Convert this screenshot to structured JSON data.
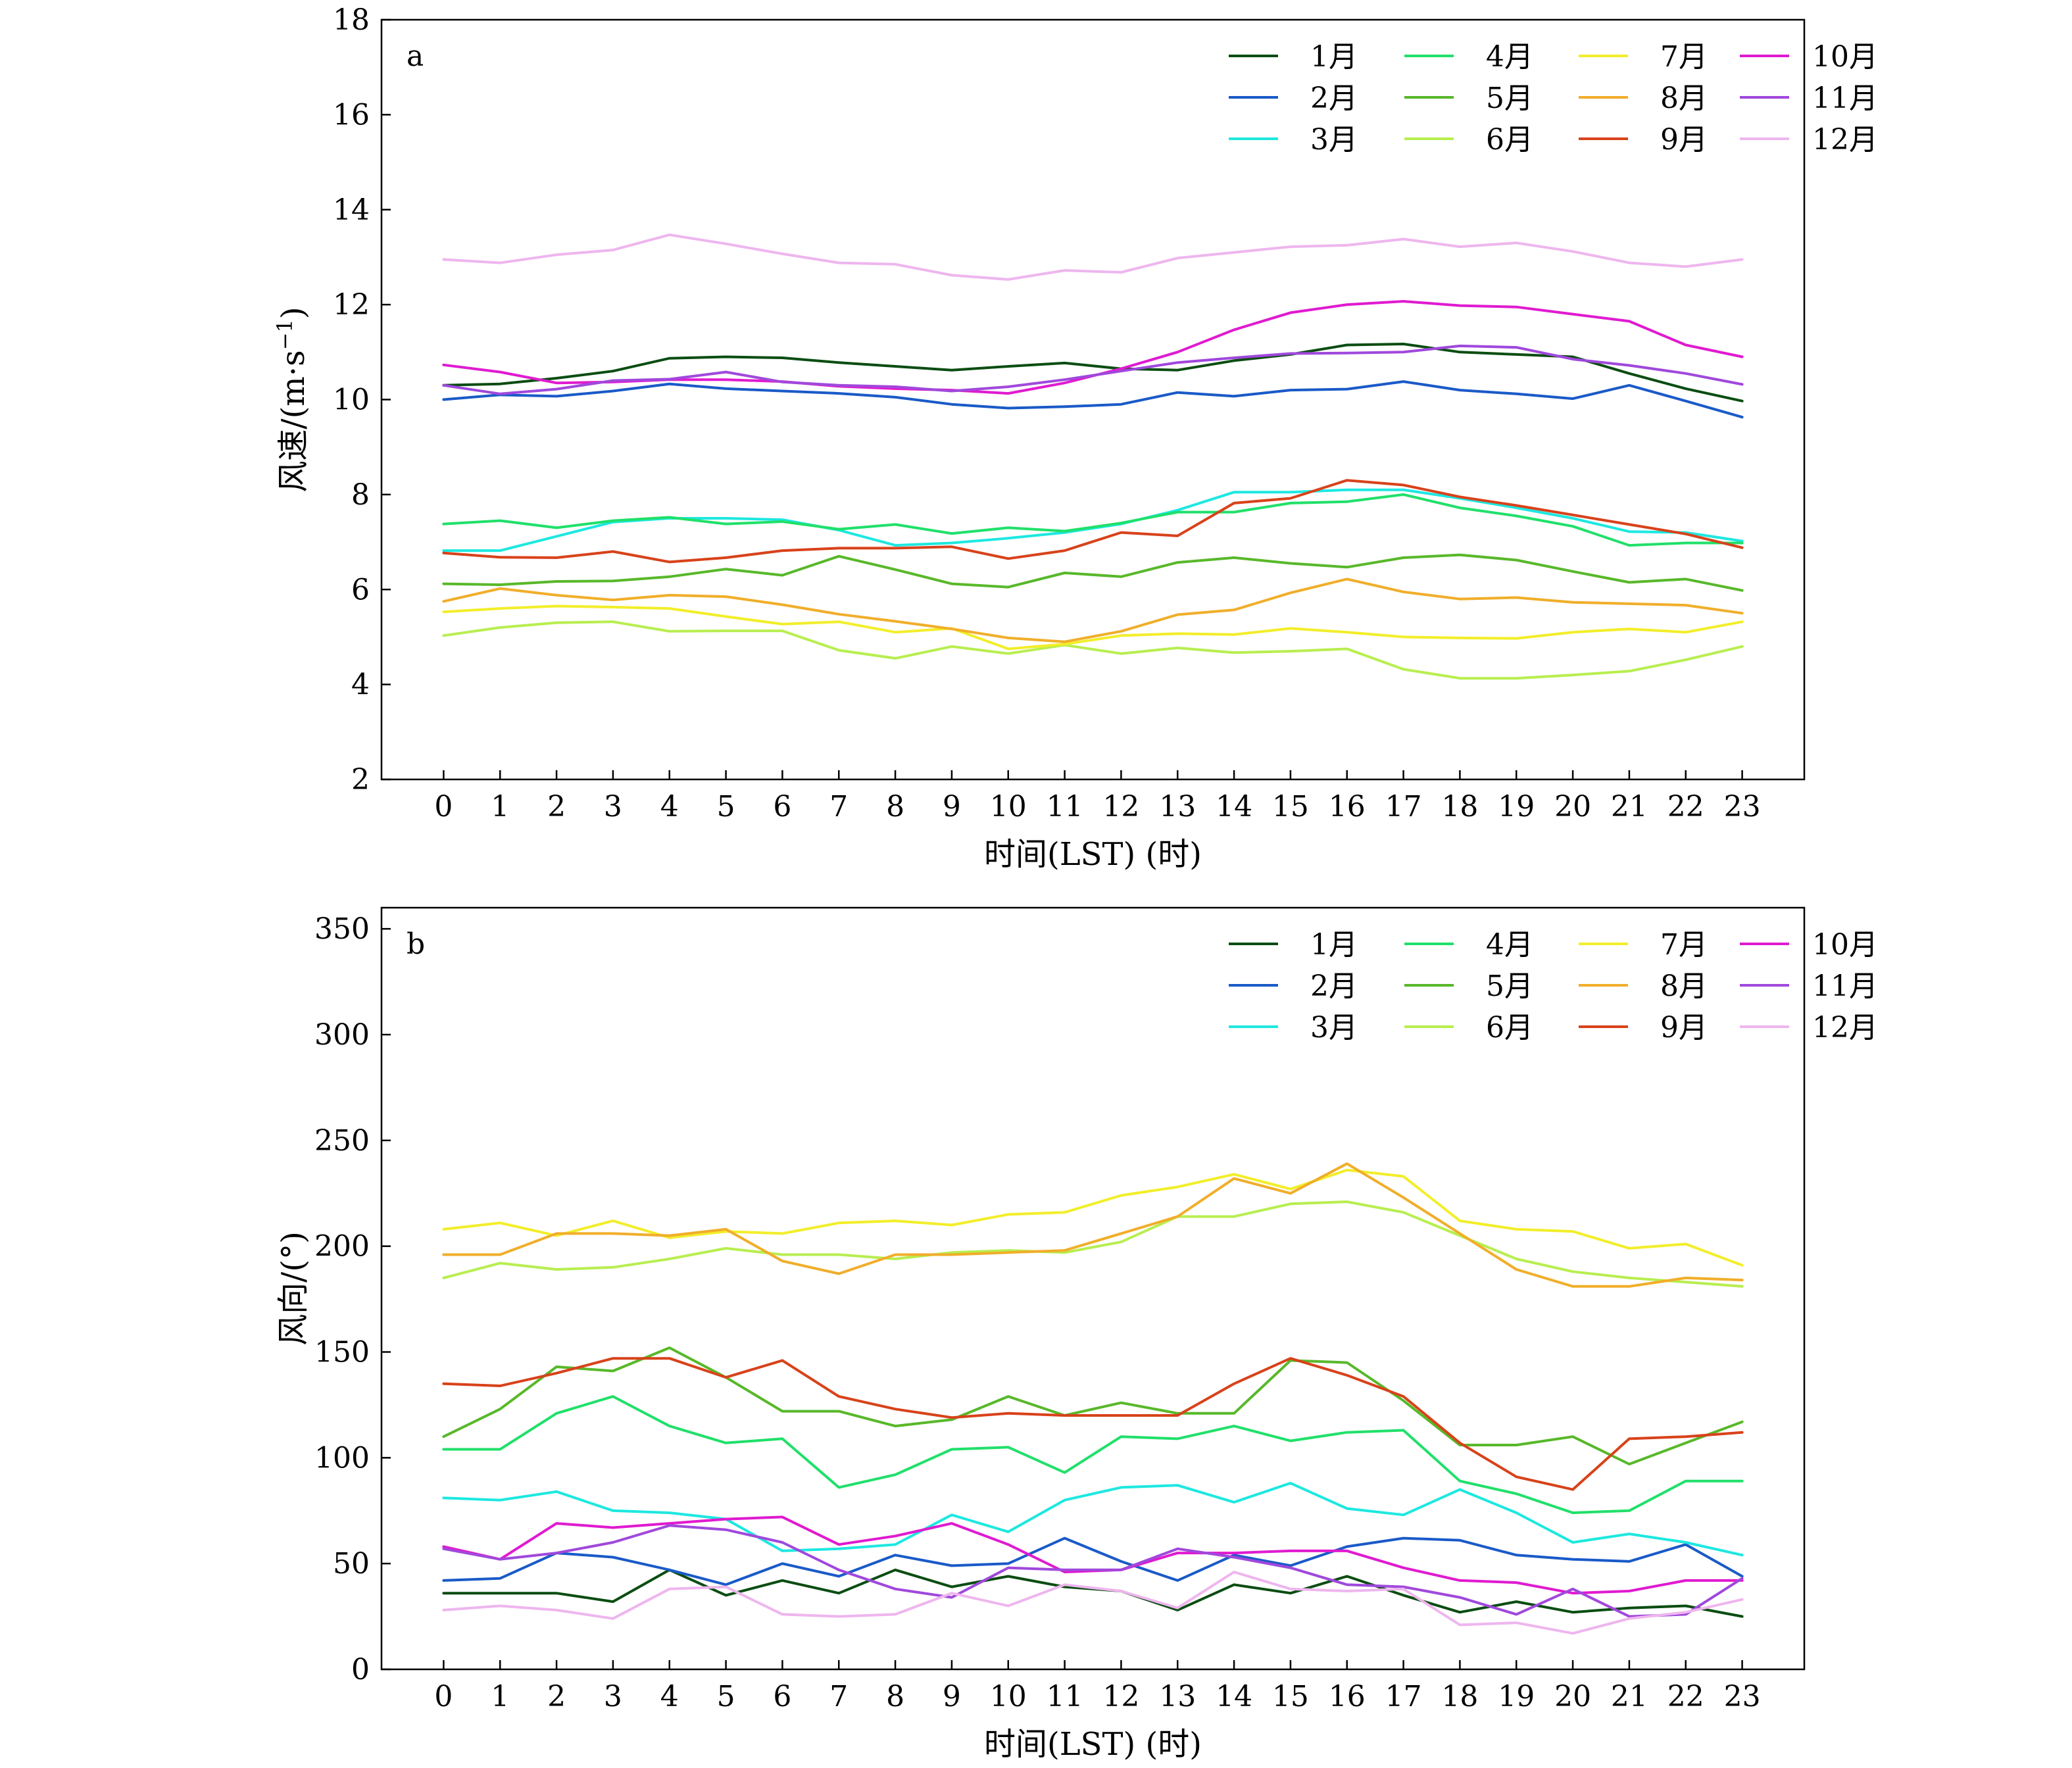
{
  "chart_data": [
    {
      "panel_label": "a",
      "type": "line",
      "xlabel": "时间(LST) (时)",
      "ylabel": "风速/(m·s⁻¹)",
      "ylabel_main": "风速/(m·s",
      "ylabel_sup": "−1",
      "ylabel_end": ")",
      "xlim": [
        -1.1,
        24.1
      ],
      "ylim": [
        2,
        18
      ],
      "xticks": [
        0,
        1,
        2,
        3,
        4,
        5,
        6,
        7,
        8,
        9,
        10,
        11,
        12,
        13,
        14,
        15,
        16,
        17,
        18,
        19,
        20,
        21,
        22,
        23
      ],
      "yticks": [
        2,
        4,
        6,
        8,
        10,
        12,
        14,
        16,
        18
      ],
      "legend_position": "top-right",
      "x": [
        0,
        1,
        2,
        3,
        4,
        5,
        6,
        7,
        8,
        9,
        10,
        11,
        12,
        13,
        14,
        15,
        16,
        17,
        18,
        19,
        20,
        21,
        22,
        23
      ],
      "series": [
        {
          "name": "1月",
          "color": "#0b4d12",
          "values": [
            10.3,
            10.33,
            10.45,
            10.6,
            10.87,
            10.9,
            10.88,
            10.78,
            10.7,
            10.62,
            10.7,
            10.77,
            10.65,
            10.62,
            10.82,
            10.95,
            11.15,
            11.17,
            11.0,
            10.95,
            10.9,
            10.55,
            10.23,
            9.97
          ]
        },
        {
          "name": "2月",
          "color": "#1a5ac8",
          "values": [
            10.0,
            10.1,
            10.07,
            10.18,
            10.33,
            10.23,
            10.18,
            10.13,
            10.05,
            9.9,
            9.82,
            9.85,
            9.9,
            10.15,
            10.07,
            10.2,
            10.22,
            10.38,
            10.2,
            10.12,
            10.02,
            10.3,
            9.97,
            9.63
          ]
        },
        {
          "name": "3月",
          "color": "#1de8e0",
          "values": [
            6.82,
            6.82,
            7.12,
            7.42,
            7.5,
            7.5,
            7.47,
            7.25,
            6.93,
            6.98,
            7.08,
            7.2,
            7.38,
            7.67,
            8.05,
            8.05,
            8.1,
            8.1,
            7.92,
            7.72,
            7.5,
            7.22,
            7.2,
            7.02
          ]
        },
        {
          "name": "4月",
          "color": "#20e06a",
          "values": [
            7.38,
            7.45,
            7.3,
            7.45,
            7.52,
            7.38,
            7.43,
            7.27,
            7.37,
            7.18,
            7.3,
            7.23,
            7.4,
            7.63,
            7.63,
            7.82,
            7.85,
            8.0,
            7.72,
            7.55,
            7.33,
            6.93,
            6.98,
            6.98
          ]
        },
        {
          "name": "5月",
          "color": "#58b82a",
          "values": [
            6.12,
            6.1,
            6.17,
            6.18,
            6.27,
            6.43,
            6.3,
            6.7,
            6.42,
            6.12,
            6.05,
            6.35,
            6.27,
            6.57,
            6.67,
            6.55,
            6.47,
            6.67,
            6.73,
            6.62,
            6.38,
            6.15,
            6.22,
            5.98
          ]
        },
        {
          "name": "6月",
          "color": "#b8ee50",
          "values": [
            5.03,
            5.2,
            5.3,
            5.32,
            5.12,
            5.13,
            5.13,
            4.72,
            4.55,
            4.8,
            4.65,
            4.83,
            4.65,
            4.77,
            4.67,
            4.7,
            4.75,
            4.32,
            4.13,
            4.13,
            4.2,
            4.28,
            4.52,
            4.8
          ]
        },
        {
          "name": "7月",
          "color": "#f2ee2a",
          "values": [
            5.53,
            5.6,
            5.65,
            5.63,
            5.6,
            5.43,
            5.27,
            5.32,
            5.1,
            5.18,
            4.75,
            4.85,
            5.03,
            5.07,
            5.05,
            5.18,
            5.1,
            5.0,
            4.98,
            4.97,
            5.1,
            5.17,
            5.1,
            5.32
          ]
        },
        {
          "name": "8月",
          "color": "#f0ae2a",
          "values": [
            5.75,
            6.02,
            5.88,
            5.78,
            5.88,
            5.85,
            5.68,
            5.48,
            5.33,
            5.17,
            4.98,
            4.9,
            5.12,
            5.47,
            5.57,
            5.93,
            6.22,
            5.95,
            5.8,
            5.83,
            5.73,
            5.7,
            5.67,
            5.5
          ]
        },
        {
          "name": "9月",
          "color": "#d8421a",
          "values": [
            6.77,
            6.68,
            6.67,
            6.8,
            6.58,
            6.67,
            6.82,
            6.87,
            6.87,
            6.9,
            6.65,
            6.82,
            7.2,
            7.13,
            7.82,
            7.92,
            8.3,
            8.2,
            7.95,
            7.77,
            7.57,
            7.37,
            7.17,
            6.88
          ]
        },
        {
          "name": "10月",
          "color": "#e01ad0",
          "values": [
            10.73,
            10.58,
            10.35,
            10.37,
            10.42,
            10.42,
            10.38,
            10.28,
            10.23,
            10.2,
            10.13,
            10.35,
            10.65,
            11.0,
            11.47,
            11.83,
            12.0,
            12.07,
            11.98,
            11.95,
            11.8,
            11.65,
            11.15,
            10.9
          ]
        },
        {
          "name": "11月",
          "color": "#a048dc",
          "values": [
            10.3,
            10.12,
            10.22,
            10.4,
            10.43,
            10.58,
            10.37,
            10.3,
            10.27,
            10.18,
            10.27,
            10.42,
            10.6,
            10.78,
            10.88,
            10.97,
            10.98,
            11.0,
            11.13,
            11.1,
            10.85,
            10.72,
            10.55,
            10.32
          ]
        },
        {
          "name": "12月",
          "color": "#eeb6ee",
          "values": [
            12.95,
            12.88,
            13.05,
            13.15,
            13.47,
            13.28,
            13.07,
            12.88,
            12.85,
            12.62,
            12.53,
            12.72,
            12.68,
            12.98,
            13.1,
            13.22,
            13.25,
            13.38,
            13.22,
            13.3,
            13.12,
            12.88,
            12.8,
            12.95
          ]
        }
      ]
    },
    {
      "panel_label": "b",
      "type": "line",
      "xlabel": "时间(LST) (时)",
      "ylabel": "风向/(°)",
      "xlim": [
        -1.1,
        24.1
      ],
      "ylim": [
        0,
        360
      ],
      "xticks": [
        0,
        1,
        2,
        3,
        4,
        5,
        6,
        7,
        8,
        9,
        10,
        11,
        12,
        13,
        14,
        15,
        16,
        17,
        18,
        19,
        20,
        21,
        22,
        23
      ],
      "yticks": [
        0,
        50,
        100,
        150,
        200,
        250,
        300,
        350
      ],
      "legend_position": "top-right",
      "x": [
        0,
        1,
        2,
        3,
        4,
        5,
        6,
        7,
        8,
        9,
        10,
        11,
        12,
        13,
        14,
        15,
        16,
        17,
        18,
        19,
        20,
        21,
        22,
        23
      ],
      "series": [
        {
          "name": "1月",
          "color": "#0b4d12",
          "values": [
            36,
            36,
            36,
            32,
            47,
            35,
            42,
            36,
            47,
            39,
            44,
            39,
            37,
            28,
            40,
            36,
            44,
            35,
            27,
            32,
            27,
            29,
            30,
            25
          ]
        },
        {
          "name": "2月",
          "color": "#1a5ac8",
          "values": [
            42,
            43,
            55,
            53,
            47,
            40,
            50,
            44,
            54,
            49,
            50,
            62,
            51,
            42,
            54,
            49,
            58,
            62,
            61,
            54,
            52,
            51,
            59,
            44
          ]
        },
        {
          "name": "3月",
          "color": "#1de8e0",
          "values": [
            81,
            80,
            84,
            75,
            74,
            71,
            56,
            57,
            59,
            73,
            65,
            80,
            86,
            87,
            79,
            88,
            76,
            73,
            85,
            74,
            60,
            64,
            60,
            54
          ]
        },
        {
          "name": "4月",
          "color": "#20e06a",
          "values": [
            104,
            104,
            121,
            129,
            115,
            107,
            109,
            86,
            92,
            104,
            105,
            93,
            110,
            109,
            115,
            108,
            112,
            113,
            89,
            83,
            74,
            75,
            89,
            89
          ]
        },
        {
          "name": "5月",
          "color": "#58b82a",
          "values": [
            110,
            123,
            143,
            141,
            152,
            138,
            122,
            122,
            115,
            118,
            129,
            120,
            126,
            121,
            121,
            146,
            145,
            127,
            106,
            106,
            110,
            97,
            107,
            117
          ]
        },
        {
          "name": "6月",
          "color": "#b8ee50",
          "values": [
            185,
            192,
            189,
            190,
            194,
            199,
            196,
            196,
            194,
            197,
            198,
            197,
            202,
            214,
            214,
            220,
            221,
            216,
            205,
            194,
            188,
            185,
            183,
            181
          ]
        },
        {
          "name": "7月",
          "color": "#f2ee2a",
          "values": [
            208,
            211,
            205,
            212,
            204,
            207,
            206,
            211,
            212,
            210,
            215,
            216,
            224,
            228,
            234,
            227,
            236,
            233,
            212,
            208,
            207,
            199,
            201,
            191
          ]
        },
        {
          "name": "8月",
          "color": "#f0ae2a",
          "values": [
            196,
            196,
            206,
            206,
            205,
            208,
            193,
            187,
            196,
            196,
            197,
            198,
            206,
            214,
            232,
            225,
            239,
            223,
            206,
            189,
            181,
            181,
            185,
            184
          ]
        },
        {
          "name": "9月",
          "color": "#d8421a",
          "values": [
            135,
            134,
            140,
            147,
            147,
            138,
            146,
            129,
            123,
            119,
            121,
            120,
            120,
            120,
            135,
            147,
            139,
            129,
            107,
            91,
            85,
            109,
            110,
            112
          ]
        },
        {
          "name": "10月",
          "color": "#e01ad0",
          "values": [
            58,
            52,
            69,
            67,
            69,
            71,
            72,
            59,
            63,
            69,
            59,
            46,
            47,
            55,
            55,
            56,
            56,
            48,
            42,
            41,
            36,
            37,
            42,
            42
          ]
        },
        {
          "name": "11月",
          "color": "#a048dc",
          "values": [
            57,
            52,
            55,
            60,
            68,
            66,
            60,
            47,
            38,
            34,
            48,
            47,
            47,
            57,
            53,
            48,
            40,
            39,
            34,
            26,
            38,
            25,
            26,
            43
          ]
        },
        {
          "name": "12月",
          "color": "#eeb6ee",
          "values": [
            28,
            30,
            28,
            24,
            38,
            39,
            26,
            25,
            26,
            36,
            30,
            40,
            37,
            29,
            46,
            38,
            37,
            38,
            21,
            22,
            17,
            24,
            27,
            33
          ]
        }
      ]
    }
  ]
}
